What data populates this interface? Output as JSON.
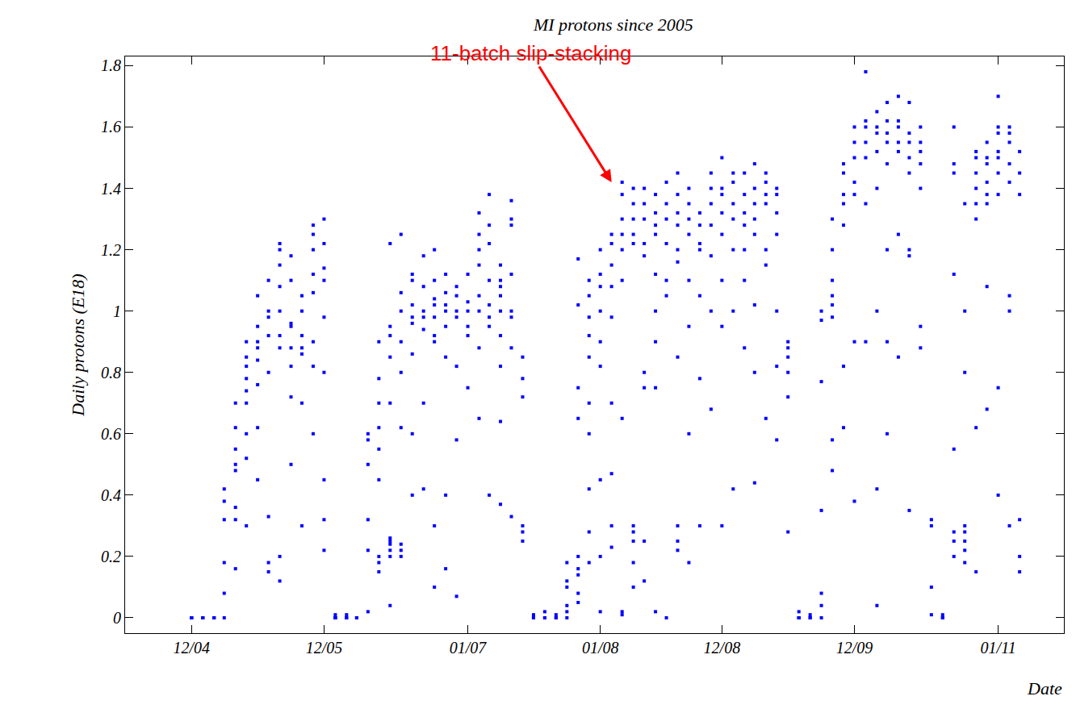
{
  "chart_data": {
    "type": "scatter",
    "title": "MI protons since 2005",
    "x_label": "Date",
    "y_label": "Daily protons (E18)",
    "color": "#0000ff",
    "marker": "square",
    "grid": false,
    "xlim": [
      "2004-06",
      "2011-07"
    ],
    "xticks": [
      {
        "value": "2004-12",
        "label": "12/04"
      },
      {
        "value": "2005-12",
        "label": "12/05"
      },
      {
        "value": "2007-01",
        "label": "01/07"
      },
      {
        "value": "2008-01",
        "label": "01/08"
      },
      {
        "value": "2008-12",
        "label": "12/08"
      },
      {
        "value": "2009-12",
        "label": "12/09"
      },
      {
        "value": "2011-01",
        "label": "01/11"
      }
    ],
    "ylim": [
      -0.05,
      1.83
    ],
    "yticks": [
      0,
      0.2,
      0.4,
      0.6,
      0.8,
      1,
      1.2,
      1.4,
      1.6,
      1.8
    ],
    "annotations": [
      {
        "text": "11-batch slip-stacking",
        "x": "2008-02",
        "y": 1.42,
        "color": "#ff0000"
      }
    ],
    "x": [
      "2004-12",
      "2005-01",
      "2005-02",
      "2005-03",
      "2005-04",
      "2005-05",
      "2005-06",
      "2005-07",
      "2005-08",
      "2005-09",
      "2005-10",
      "2005-11",
      "2005-12",
      "2006-01",
      "2006-02",
      "2006-03",
      "2006-04",
      "2006-05",
      "2006-06",
      "2006-07",
      "2006-08",
      "2006-09",
      "2006-10",
      "2006-11",
      "2006-12",
      "2007-01",
      "2007-02",
      "2007-03",
      "2007-04",
      "2007-05",
      "2007-06",
      "2007-07",
      "2007-08",
      "2007-09",
      "2007-10",
      "2007-11",
      "2007-12",
      "2008-01",
      "2008-02",
      "2008-03",
      "2008-04",
      "2008-05",
      "2008-06",
      "2008-07",
      "2008-08",
      "2008-09",
      "2008-10",
      "2008-11",
      "2008-12",
      "2009-01",
      "2009-02",
      "2009-03",
      "2009-04",
      "2009-05",
      "2009-06",
      "2009-07",
      "2009-08",
      "2009-09",
      "2009-10",
      "2009-11",
      "2009-12",
      "2010-01",
      "2010-02",
      "2010-03",
      "2010-04",
      "2010-05",
      "2010-06",
      "2010-07",
      "2010-08",
      "2010-09",
      "2010-10",
      "2010-11",
      "2010-12",
      "2011-01",
      "2011-02",
      "2011-03"
    ],
    "values": [
      [
        0,
        0,
        0
      ],
      [
        0,
        0,
        0
      ],
      [
        0,
        0,
        0
      ],
      [
        0,
        0.08,
        0.18,
        0.32,
        0.38,
        0.42
      ],
      [
        0.36,
        0.5,
        0.48,
        0.7,
        0.62,
        0.32,
        0.55,
        0.16
      ],
      [
        0.7,
        0.74,
        0.9,
        0.85,
        0.6,
        0.3,
        0.52,
        0.78,
        0.82
      ],
      [
        0.84,
        0.9,
        1.05,
        0.62,
        0.88,
        0.95,
        0.76,
        0.45
      ],
      [
        0.92,
        0.98,
        1.1,
        0.8,
        1.0,
        0.18,
        0.15,
        0.33
      ],
      [
        1.2,
        1.22,
        1.08,
        1.15,
        0.88,
        0.2,
        0.12,
        0.92,
        1.0
      ],
      [
        0.96,
        1.1,
        1.18,
        0.88,
        0.82,
        0.5,
        0.95,
        0.72
      ],
      [
        0.88,
        1.0,
        0.86,
        0.7,
        0.3,
        1.05,
        0.92
      ],
      [
        1.2,
        1.25,
        1.28,
        1.12,
        0.82,
        0.9,
        1.06,
        0.6
      ],
      [
        1.3,
        1.22,
        1.1,
        0.8,
        0.45,
        1.14,
        0.32,
        0.98,
        0.22
      ],
      [
        0,
        0.01,
        0,
        0
      ],
      [
        0,
        0,
        0.01
      ],
      [
        0,
        0,
        0,
        0
      ],
      [
        0.02,
        0.32,
        0.22,
        0.5,
        0.6,
        0.58
      ],
      [
        0.15,
        0.18,
        0.9,
        0.55,
        0.78,
        0.7,
        0.2,
        0.45,
        0.62
      ],
      [
        0.2,
        0.22,
        0.25,
        0.24,
        0.26,
        0.92,
        0.95,
        1.22,
        0.85,
        0.7,
        0.04
      ],
      [
        0.2,
        0.24,
        0.22,
        0.9,
        1.0,
        1.06,
        1.25,
        0.8,
        0.62
      ],
      [
        1.02,
        1.1,
        0.98,
        0.96,
        1.12,
        0.6,
        0.86,
        0.4
      ],
      [
        1.0,
        0.94,
        1.08,
        1.18,
        0.98,
        0.42,
        0.7
      ],
      [
        1.04,
        0.98,
        1.1,
        1.02,
        0.92,
        0.9,
        0.3,
        0.1,
        1.2
      ],
      [
        1.0,
        1.06,
        1.02,
        0.95,
        0.85,
        0.4,
        1.12,
        0.16
      ],
      [
        1.05,
        1.08,
        0.98,
        1.0,
        0.82,
        0.58,
        0.07
      ],
      [
        1.03,
        1.0,
        1.12,
        0.92,
        0.75,
        0.95
      ],
      [
        1.2,
        1.32,
        1.25,
        1.05,
        1.0,
        0.65,
        0.88,
        1.15
      ],
      [
        1.38,
        1.22,
        1.28,
        1.1,
        0.95,
        0.98,
        0.4,
        1.02
      ],
      [
        1.05,
        1.0,
        0.92,
        1.08,
        0.64,
        0.82,
        0.37,
        1.1,
        1.15
      ],
      [
        1.3,
        1.36,
        1.28,
        1.0,
        0.98,
        1.12,
        0.88,
        0.33
      ],
      [
        0.78,
        0.72,
        0.85,
        0.28,
        0.25,
        0.3
      ],
      [
        0,
        0.01,
        0,
        0
      ],
      [
        0,
        0,
        0.02
      ],
      [
        0,
        0.01,
        0
      ],
      [
        0,
        0.04,
        0.12,
        0.18,
        0.1,
        0.02
      ],
      [
        0.2,
        0.14,
        0.16,
        0.05,
        1.17,
        1.02,
        0.75,
        0.65,
        0.08
      ],
      [
        0.7,
        0.85,
        0.92,
        1.05,
        0.98,
        1.1,
        0.6,
        0.28,
        0.18,
        0.42
      ],
      [
        1.12,
        1.2,
        1.0,
        0.9,
        0.82,
        1.08,
        0.45,
        0.2,
        0.02
      ],
      [
        1.22,
        1.15,
        0.98,
        1.08,
        1.25,
        0.7,
        0.47,
        0.3,
        0.23
      ],
      [
        1.3,
        1.38,
        1.42,
        1.25,
        1.2,
        1.1,
        0.65,
        0.02,
        0.01
      ],
      [
        1.35,
        1.4,
        1.22,
        1.3,
        1.25,
        0.28,
        0.25,
        0.3,
        0.18,
        0.1
      ],
      [
        1.3,
        1.22,
        1.35,
        1.18,
        1.4,
        0.75,
        0.8,
        0.12,
        0.25
      ],
      [
        1.32,
        1.28,
        1.25,
        1.38,
        1.12,
        1.0,
        0.75,
        0.9,
        0.02
      ],
      [
        1.3,
        1.22,
        1.35,
        1.42,
        1.1,
        0,
        1.05
      ],
      [
        1.28,
        1.38,
        1.2,
        1.32,
        1.16,
        1.45,
        0.3,
        0.25,
        0.22,
        0.85
      ],
      [
        1.35,
        1.4,
        1.25,
        1.1,
        1.3,
        0.6,
        0.18,
        0.95
      ],
      [
        1.2,
        1.32,
        1.28,
        1.05,
        1.22,
        0.78,
        0.3
      ],
      [
        1.35,
        1.4,
        1.28,
        1.18,
        1.45,
        1.0,
        0.68
      ],
      [
        1.4,
        1.32,
        1.25,
        1.38,
        1.5,
        1.1,
        0.95,
        0.3
      ],
      [
        1.35,
        1.42,
        1.3,
        1.45,
        1.2,
        1.0,
        0.42
      ],
      [
        1.38,
        1.32,
        1.45,
        1.28,
        1.1,
        1.2,
        0.88
      ],
      [
        1.4,
        1.35,
        1.48,
        1.3,
        1.25,
        1.02,
        0.8,
        0.44
      ],
      [
        1.42,
        1.38,
        1.45,
        1.35,
        1.2,
        1.15,
        0.65
      ],
      [
        1.38,
        1.32,
        1.4,
        1.25,
        1.0,
        0.82,
        0.58
      ],
      [
        0.9,
        0.85,
        0.88,
        0.8,
        0.72,
        0.28
      ],
      [
        0,
        0,
        0.02,
        0
      ],
      [
        0,
        0.01,
        0
      ],
      [
        0,
        0.04,
        0.08,
        0.35,
        0.77,
        1.0,
        0.97
      ],
      [
        1.1,
        1.2,
        1.3,
        1.05,
        1.02,
        0.98,
        0.58,
        0.48
      ],
      [
        1.38,
        1.45,
        1.35,
        1.48,
        1.28,
        0.62,
        0.82
      ],
      [
        1.5,
        1.6,
        1.55,
        1.42,
        1.38,
        0.9,
        0.38
      ],
      [
        1.6,
        1.55,
        1.78,
        1.62,
        1.5,
        1.35,
        0.9
      ],
      [
        1.58,
        1.52,
        1.65,
        1.6,
        1.4,
        1.0,
        0.42,
        0.04
      ],
      [
        1.62,
        1.55,
        1.58,
        1.68,
        1.48,
        1.2,
        0.9,
        0.6
      ],
      [
        1.55,
        1.6,
        1.52,
        1.62,
        1.7,
        1.25,
        0.85
      ],
      [
        1.5,
        1.58,
        1.55,
        1.68,
        1.45,
        1.2,
        1.18,
        0.35
      ],
      [
        1.52,
        1.55,
        1.6,
        1.48,
        1.4,
        0.95,
        0.88
      ],
      [
        0.32,
        0.3,
        0.1,
        0.01
      ],
      [
        0,
        0.01,
        0
      ],
      [
        1.48,
        1.6,
        1.45,
        1.12,
        0.55,
        0.25,
        0.28,
        0.2
      ],
      [
        0.22,
        0.25,
        0.28,
        0.18,
        0.3,
        1.35,
        1.0,
        0.8
      ],
      [
        1.4,
        1.35,
        1.5,
        1.45,
        1.52,
        1.3,
        0.62,
        0.15
      ],
      [
        1.42,
        1.48,
        1.55,
        1.38,
        1.5,
        1.35,
        1.08,
        0.68
      ],
      [
        1.5,
        1.6,
        1.52,
        1.45,
        1.58,
        1.38,
        1.7,
        0.75,
        0.4
      ],
      [
        1.55,
        1.48,
        1.6,
        1.42,
        1.58,
        1.05,
        1.0,
        0.3
      ],
      [
        1.52,
        1.45,
        1.38,
        0.32,
        0.2,
        0.15
      ]
    ]
  }
}
